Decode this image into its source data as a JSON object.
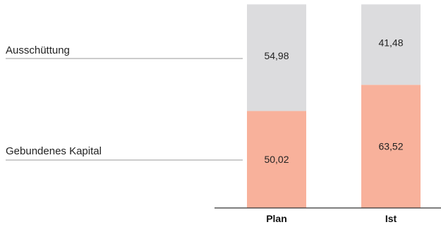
{
  "chart_data": {
    "type": "bar",
    "stacked": true,
    "categories": [
      "Plan",
      "Ist"
    ],
    "series": [
      {
        "name": "Gebundenes Kapital",
        "values": [
          50.02,
          63.52
        ],
        "labels": [
          "50,02",
          "63,52"
        ]
      },
      {
        "name": "Ausschüttung",
        "values": [
          54.98,
          41.48
        ],
        "labels": [
          "54,98",
          "41,48"
        ]
      }
    ],
    "title": "",
    "xlabel": "",
    "ylabel": "",
    "ylim": [
      0,
      105
    ],
    "grid": false,
    "legend": "left"
  },
  "colors": {
    "Gebundenes Kapital": "#f8b19b",
    "Ausschüttung": "#dcdcde",
    "legend_line": "#9a9a9a",
    "axis": "#333333"
  }
}
